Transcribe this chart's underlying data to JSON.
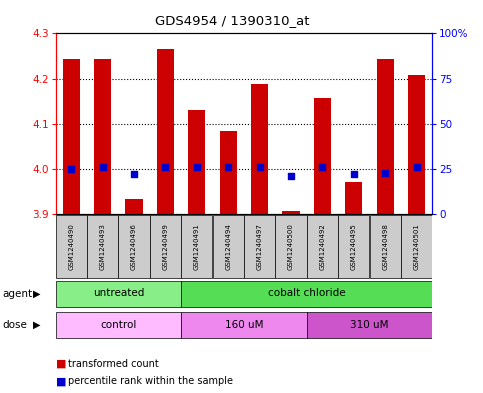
{
  "title": "GDS4954 / 1390310_at",
  "samples": [
    "GSM1240490",
    "GSM1240493",
    "GSM1240496",
    "GSM1240499",
    "GSM1240491",
    "GSM1240494",
    "GSM1240497",
    "GSM1240500",
    "GSM1240492",
    "GSM1240495",
    "GSM1240498",
    "GSM1240501"
  ],
  "transformed_count": [
    4.243,
    4.244,
    3.933,
    4.265,
    4.13,
    4.085,
    4.187,
    3.908,
    4.158,
    3.972,
    4.244,
    4.207
  ],
  "percentile_rank": [
    25,
    26,
    22,
    26,
    26,
    26,
    26,
    21,
    26,
    22,
    23,
    26
  ],
  "ymin": 3.9,
  "ymax": 4.3,
  "y_ticks": [
    3.9,
    4.0,
    4.1,
    4.2,
    4.3
  ],
  "right_y_ticks": [
    0,
    25,
    50,
    75,
    100
  ],
  "bar_bottom": 3.9,
  "bar_color": "#cc0000",
  "dot_color": "#0000cc",
  "agent_groups": [
    {
      "label": "untreated",
      "start": 0,
      "end": 4,
      "color": "#88ee88"
    },
    {
      "label": "cobalt chloride",
      "start": 4,
      "end": 12,
      "color": "#55dd55"
    }
  ],
  "dose_groups": [
    {
      "label": "control",
      "start": 0,
      "end": 4,
      "color": "#ffbbff"
    },
    {
      "label": "160 uM",
      "start": 4,
      "end": 8,
      "color": "#ee88ee"
    },
    {
      "label": "310 uM",
      "start": 8,
      "end": 12,
      "color": "#cc55cc"
    }
  ],
  "background_color": "#ffffff",
  "plot_bg_color": "#ffffff",
  "sample_box_color": "#cccccc"
}
